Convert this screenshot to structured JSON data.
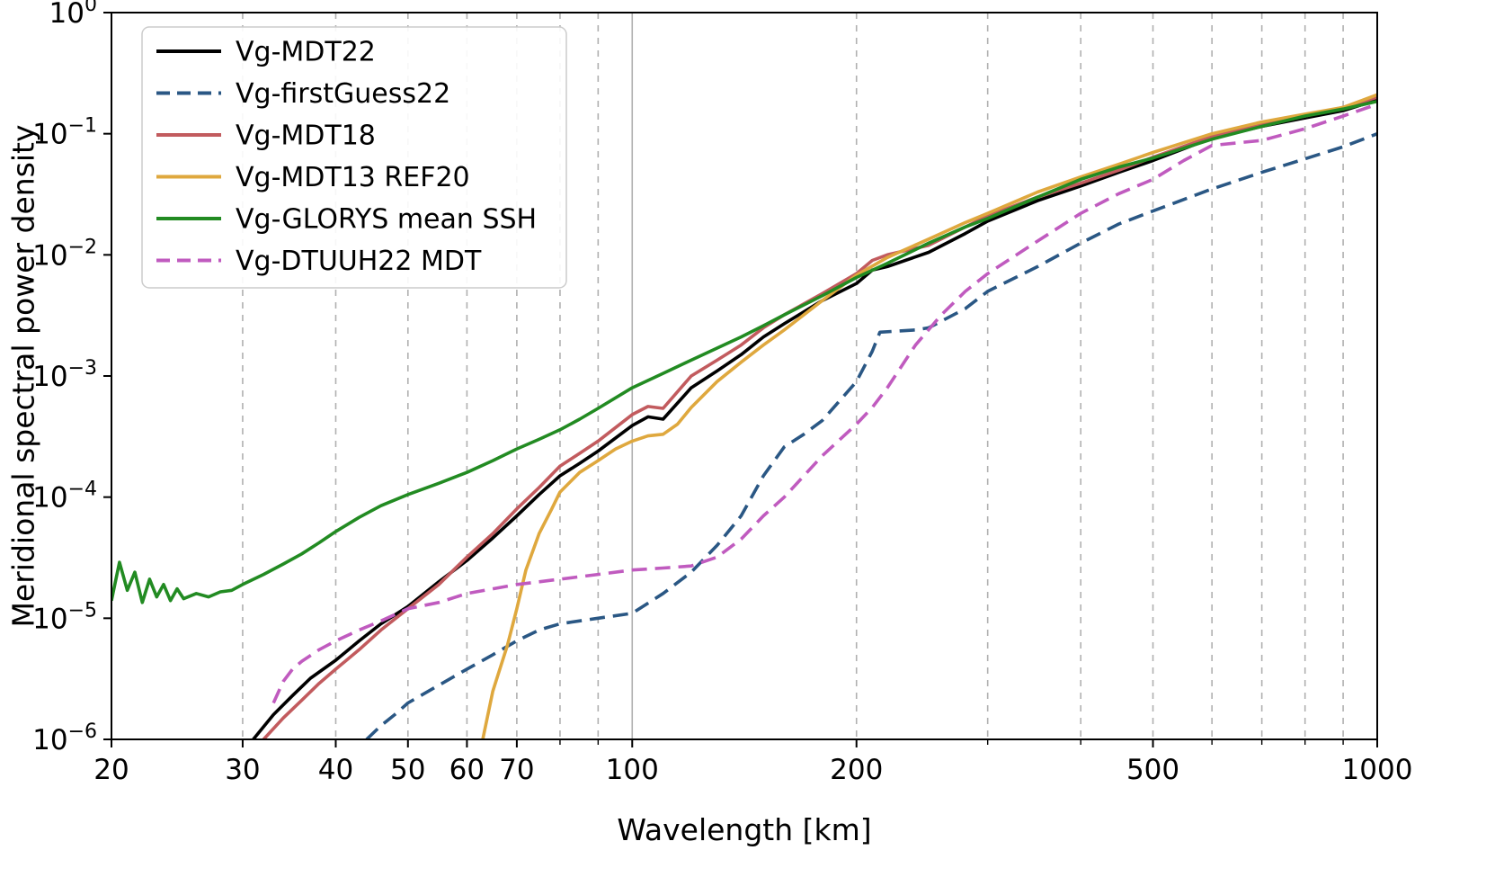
{
  "chart_data": {
    "type": "line",
    "title": "",
    "xlabel": "Wavelength [km]",
    "ylabel": "Meridional spectral power density",
    "xscale": "log",
    "yscale": "log",
    "xlim": [
      20,
      1000
    ],
    "ylim": [
      1e-06,
      1
    ],
    "grid_color": "#b0b0b0",
    "frame_color": "#000000",
    "legend": {
      "position": "upper-left",
      "border_color": "#cccccc",
      "background": "#ffffff"
    },
    "x_ticks": [
      {
        "v": 20,
        "label": "20"
      },
      {
        "v": 30,
        "label": "30"
      },
      {
        "v": 40,
        "label": "40"
      },
      {
        "v": 50,
        "label": "50"
      },
      {
        "v": 60,
        "label": "60"
      },
      {
        "v": 70,
        "label": "70"
      },
      {
        "v": 100,
        "label": "100"
      },
      {
        "v": 200,
        "label": "200"
      },
      {
        "v": 500,
        "label": "500"
      },
      {
        "v": 1000,
        "label": "1000"
      }
    ],
    "x_minor_ticks": [
      80,
      90,
      300,
      400,
      600,
      700,
      800,
      900
    ],
    "x_minor_gridlines": [
      30,
      40,
      50,
      60,
      70,
      80,
      90,
      200,
      300,
      400,
      500,
      600,
      700,
      800,
      900
    ],
    "x_major_gridlines": [
      100,
      1000
    ],
    "y_ticks": [
      {
        "e": 0,
        "base": "10",
        "sup": "0"
      },
      {
        "e": -1,
        "base": "10",
        "sup": "−1"
      },
      {
        "e": -2,
        "base": "10",
        "sup": "−2"
      },
      {
        "e": -3,
        "base": "10",
        "sup": "−3"
      },
      {
        "e": -4,
        "base": "10",
        "sup": "−4"
      },
      {
        "e": -5,
        "base": "10",
        "sup": "−5"
      },
      {
        "e": -6,
        "base": "10",
        "sup": "−6"
      }
    ],
    "series": [
      {
        "name": "Vg-MDT22",
        "color": "#000000",
        "style": "solid",
        "x": [
          31,
          33,
          35,
          37,
          40,
          43,
          46,
          50,
          55,
          60,
          65,
          70,
          75,
          80,
          85,
          90,
          100,
          105,
          110,
          120,
          130,
          140,
          150,
          160,
          180,
          200,
          210,
          220,
          250,
          280,
          300,
          350,
          400,
          450,
          500,
          600,
          700,
          800,
          900,
          1000
        ],
        "y": [
          1e-06,
          1.6e-06,
          2.3e-06,
          3.2e-06,
          4.5e-06,
          6.5e-06,
          9e-06,
          1.25e-05,
          2e-05,
          3e-05,
          4.6e-05,
          7e-05,
          0.000105,
          0.00015,
          0.00019,
          0.00024,
          0.00039,
          0.00046,
          0.00044,
          0.0008,
          0.0011,
          0.0015,
          0.0021,
          0.0027,
          0.0042,
          0.0058,
          0.0075,
          0.008,
          0.0105,
          0.015,
          0.019,
          0.028,
          0.037,
          0.048,
          0.06,
          0.092,
          0.115,
          0.135,
          0.155,
          0.19
        ]
      },
      {
        "name": "Vg-firstGuess22",
        "color": "#2a5784",
        "style": "dashed",
        "x": [
          44,
          46,
          48,
          50,
          55,
          60,
          65,
          70,
          75,
          80,
          90,
          100,
          110,
          120,
          130,
          140,
          150,
          160,
          170,
          180,
          200,
          210,
          215,
          240,
          250,
          280,
          300,
          350,
          400,
          450,
          500,
          600,
          700,
          800,
          900,
          1000
        ],
        "y": [
          1e-06,
          1.3e-06,
          1.6e-06,
          2e-06,
          2.8e-06,
          3.8e-06,
          5e-06,
          6.5e-06,
          8e-06,
          9e-06,
          1e-05,
          1.1e-05,
          1.6e-05,
          2.4e-05,
          4e-05,
          7e-05,
          0.00015,
          0.00026,
          0.00033,
          0.00043,
          0.0009,
          0.0016,
          0.0023,
          0.0024,
          0.0025,
          0.0036,
          0.005,
          0.008,
          0.0125,
          0.018,
          0.023,
          0.035,
          0.048,
          0.062,
          0.078,
          0.1
        ]
      },
      {
        "name": "Vg-MDT18",
        "color": "#c25b5e",
        "style": "solid",
        "x": [
          32,
          34,
          36,
          38,
          40,
          43,
          46,
          50,
          55,
          60,
          65,
          70,
          75,
          80,
          85,
          90,
          100,
          105,
          110,
          120,
          130,
          140,
          150,
          160,
          180,
          200,
          210,
          220,
          250,
          280,
          300,
          350,
          400,
          450,
          500,
          600,
          700,
          800,
          900,
          1000
        ],
        "y": [
          1e-06,
          1.5e-06,
          2.1e-06,
          2.9e-06,
          3.8e-06,
          5.5e-06,
          8e-06,
          1.2e-05,
          1.9e-05,
          3.2e-05,
          5e-05,
          8e-05,
          0.00012,
          0.00018,
          0.00023,
          0.00029,
          0.00048,
          0.00056,
          0.00054,
          0.001,
          0.00135,
          0.0018,
          0.0025,
          0.0032,
          0.0048,
          0.007,
          0.009,
          0.01,
          0.012,
          0.017,
          0.021,
          0.03,
          0.039,
          0.05,
          0.064,
          0.095,
          0.12,
          0.14,
          0.165,
          0.2
        ]
      },
      {
        "name": "Vg-MDT13 REF20",
        "color": "#dfa83e",
        "style": "solid",
        "x": [
          63,
          65,
          68,
          70,
          72,
          75,
          78,
          80,
          85,
          90,
          95,
          100,
          105,
          110,
          115,
          120,
          130,
          140,
          150,
          160,
          180,
          200,
          220,
          250,
          280,
          300,
          350,
          400,
          450,
          500,
          600,
          700,
          800,
          900,
          1000
        ],
        "y": [
          1e-06,
          2.5e-06,
          6e-06,
          1.2e-05,
          2.5e-05,
          5e-05,
          8e-05,
          0.00011,
          0.00016,
          0.0002,
          0.00025,
          0.00029,
          0.00032,
          0.00033,
          0.0004,
          0.00055,
          0.0009,
          0.0013,
          0.0018,
          0.0024,
          0.0042,
          0.0068,
          0.0095,
          0.0135,
          0.0185,
          0.022,
          0.033,
          0.044,
          0.056,
          0.07,
          0.1,
          0.125,
          0.145,
          0.165,
          0.21
        ]
      },
      {
        "name": "Vg-GLORYS mean SSH",
        "color": "#228b22",
        "style": "solid",
        "x": [
          20,
          20.5,
          21,
          21.5,
          22,
          22.5,
          23,
          23.5,
          24,
          24.5,
          25,
          26,
          27,
          28,
          29,
          30,
          32,
          34,
          36,
          38,
          40,
          43,
          46,
          50,
          55,
          60,
          65,
          70,
          75,
          80,
          85,
          90,
          100,
          110,
          120,
          130,
          140,
          150,
          160,
          180,
          200,
          220,
          250,
          280,
          300,
          350,
          400,
          450,
          500,
          600,
          700,
          800,
          900,
          1000
        ],
        "y": [
          1.4e-05,
          2.9e-05,
          1.7e-05,
          2.4e-05,
          1.35e-05,
          2.1e-05,
          1.5e-05,
          1.9e-05,
          1.4e-05,
          1.75e-05,
          1.45e-05,
          1.6e-05,
          1.5e-05,
          1.65e-05,
          1.7e-05,
          1.9e-05,
          2.3e-05,
          2.8e-05,
          3.4e-05,
          4.2e-05,
          5.2e-05,
          6.8e-05,
          8.5e-05,
          0.000105,
          0.00013,
          0.00016,
          0.0002,
          0.00025,
          0.0003,
          0.00036,
          0.00044,
          0.00054,
          0.0008,
          0.00105,
          0.00135,
          0.0017,
          0.0021,
          0.0026,
          0.0032,
          0.0046,
          0.0065,
          0.0085,
          0.0125,
          0.017,
          0.02,
          0.03,
          0.042,
          0.053,
          0.063,
          0.09,
          0.115,
          0.14,
          0.16,
          0.185
        ]
      },
      {
        "name": "Vg-DTUUH22 MDT",
        "color": "#c05bbf",
        "style": "dashed",
        "x": [
          33,
          34,
          35,
          36,
          38,
          40,
          43,
          46,
          50,
          55,
          60,
          65,
          70,
          75,
          80,
          90,
          100,
          110,
          120,
          130,
          140,
          150,
          160,
          170,
          180,
          200,
          210,
          220,
          240,
          260,
          280,
          300,
          350,
          400,
          450,
          500,
          550,
          600,
          700,
          800,
          900,
          1000
        ],
        "y": [
          2e-06,
          3e-06,
          3.8e-06,
          4.4e-06,
          5.5e-06,
          6.5e-06,
          8e-06,
          9.5e-06,
          1.2e-05,
          1.35e-05,
          1.6e-05,
          1.75e-05,
          1.9e-05,
          2e-05,
          2.1e-05,
          2.3e-05,
          2.5e-05,
          2.6e-05,
          2.7e-05,
          3.2e-05,
          4.5e-05,
          7e-05,
          0.0001,
          0.00015,
          0.00022,
          0.0004,
          0.00055,
          0.0008,
          0.0018,
          0.0032,
          0.005,
          0.007,
          0.013,
          0.022,
          0.032,
          0.042,
          0.06,
          0.08,
          0.088,
          0.11,
          0.14,
          0.175
        ]
      }
    ]
  }
}
